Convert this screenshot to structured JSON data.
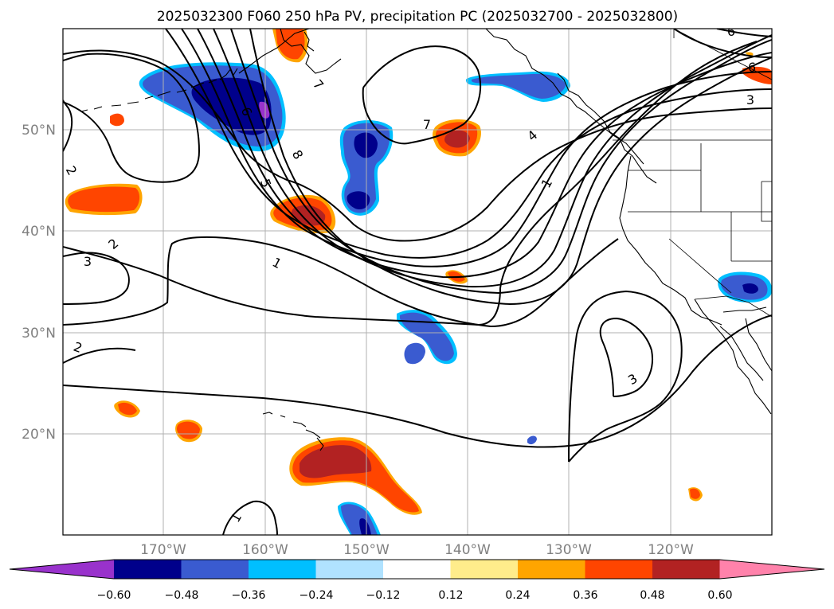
{
  "title": "2025032300 F060 250 hPa PV, precipitation PC (2025032700 - 2025032800)",
  "map": {
    "lat_labels": [
      "50°N",
      "40°N",
      "30°N",
      "20°N"
    ],
    "lon_labels": [
      "170°W",
      "160°W",
      "150°W",
      "140°W",
      "130°W",
      "120°W"
    ],
    "extent": {
      "lon_min": -180,
      "lon_max": -110,
      "lat_min": 10,
      "lat_max": 60
    },
    "gridlines": true
  },
  "contour_labels": [
    "1",
    "2",
    "3",
    "4",
    "5",
    "6",
    "7",
    "8"
  ],
  "colorbar": {
    "ticks": [
      "−0.60",
      "−0.48",
      "−0.36",
      "−0.24",
      "−0.12",
      "0.12",
      "0.24",
      "0.36",
      "0.48",
      "0.60"
    ],
    "colors": [
      "#9932cc",
      "#00008b",
      "#3a5bd0",
      "#00bfff",
      "#b0e2ff",
      "#ffffff",
      "#ffec8b",
      "#ffa500",
      "#ff4500",
      "#b22222",
      "#ff82ab"
    ],
    "extend": "both"
  }
}
